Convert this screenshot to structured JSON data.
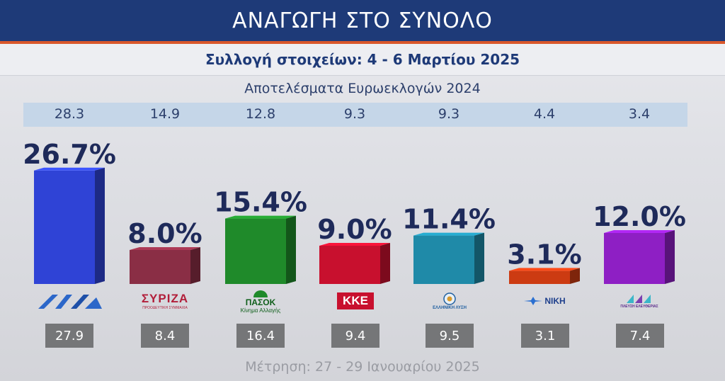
{
  "header": {
    "title": "ΑΝΑΓΩΓΗ ΣΤΟ ΣΥΝΟΛΟ"
  },
  "subheader": {
    "text": "Συλλογή στοιχείων: 4 - 6 Μαρτίου 2025"
  },
  "reference": {
    "label": "Αποτελέσματα Ευρωεκλογών 2024"
  },
  "footer": {
    "text": "Μέτρηση: 27 - 29 Ιανουαρίου 2025"
  },
  "logos": {
    "syriza": "ΣΥΡΙΖΑ",
    "syriza_sub": "ΠΡΟΟΔΕΥΤΙΚΗ ΣΥΜΜΑΧΙΑ",
    "pasok": "ΠΑΣΟΚ",
    "pasok_sub": "Κίνημα Αλλαγής",
    "kke": "ΚΚΕ",
    "elliniki_lysi": "ΕΛΛΗΝΙΚΗ ΛΥΣΗ",
    "niki": "ΝΙΚΗ",
    "plefsi": "ΠΛΕΥΣΗ ΕΛΕΥΘΕΡΙΑΣ"
  },
  "chart_data": {
    "type": "bar",
    "title": "ΑΝΑΓΩΓΗ ΣΤΟ ΣΥΝΟΛΟ",
    "categories": [
      "ΝΔ",
      "ΣΥΡΙΖΑ",
      "ΠΑΣΟΚ",
      "ΚΚΕ",
      "ΕΛΛΗΝΙΚΗ ΛΥΣΗ",
      "ΝΙΚΗ",
      "ΠΛΕΥΣΗ ΕΛΕΥΘΕΡΙΑΣ"
    ],
    "series": [
      {
        "name": "Συλλογή στοιχείων: 4 - 6 Μαρτίου 2025",
        "values": [
          26.7,
          8.0,
          15.4,
          9.0,
          11.4,
          3.1,
          12.0
        ]
      },
      {
        "name": "Αποτελέσματα Ευρωεκλογών 2024",
        "values": [
          28.3,
          14.9,
          12.8,
          9.3,
          9.3,
          4.4,
          3.4
        ]
      },
      {
        "name": "Μέτρηση: 27 - 29 Ιανουαρίου 2025",
        "values": [
          27.9,
          8.4,
          16.4,
          9.4,
          9.5,
          3.1,
          7.4
        ]
      }
    ],
    "value_labels": [
      "26.7%",
      "8.0%",
      "15.4%",
      "9.0%",
      "11.4%",
      "3.1%",
      "12.0%"
    ],
    "reference_labels": [
      "28.3",
      "14.9",
      "12.8",
      "9.3",
      "9.3",
      "4.4",
      "3.4"
    ],
    "previous_labels": [
      "27.9",
      "8.4",
      "16.4",
      "9.4",
      "9.5",
      "3.1",
      "7.4"
    ],
    "colors": [
      "#2f43d6",
      "#8a2e45",
      "#1f8a2a",
      "#c8102e",
      "#1f8aa8",
      "#cc3b12",
      "#8e1fc4"
    ],
    "ylim": [
      0,
      30
    ]
  }
}
